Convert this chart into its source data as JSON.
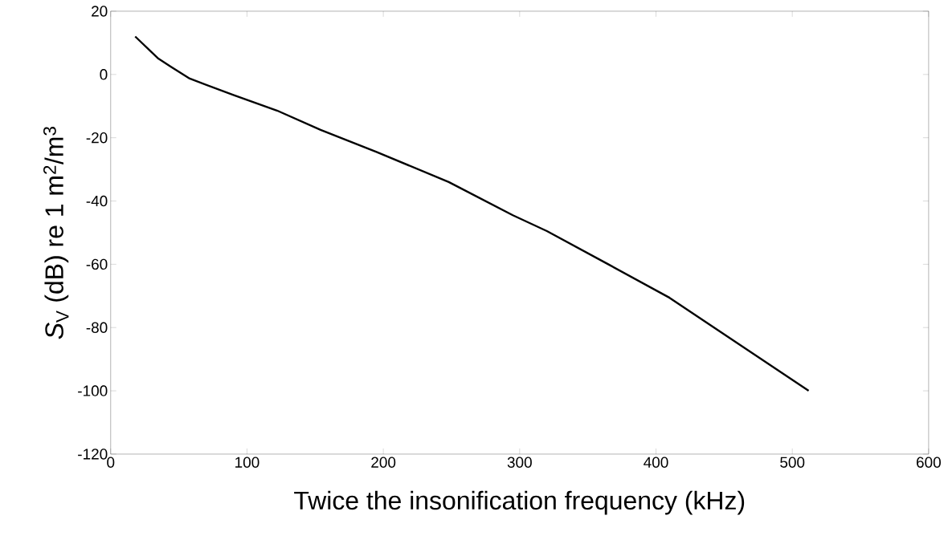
{
  "chart_data": {
    "type": "line",
    "xlabel": "Twice the insonification frequency (kHz)",
    "ylabel": "*S*$_{V}$ (dB)  re  1 m$^{2}$/m$^{3}$",
    "x": [
      18,
      35,
      44,
      58,
      90,
      122,
      154,
      195,
      248,
      295,
      320,
      365,
      410,
      460,
      512
    ],
    "values": [
      12,
      5,
      2.5,
      -1.3,
      -6.5,
      -11.4,
      -17.5,
      -24.5,
      -34,
      -44.5,
      -49.5,
      -60,
      -70.6,
      -85,
      -100
    ],
    "color": "#000000",
    "xlim": [
      0,
      600
    ],
    "ylim": [
      -120,
      20
    ],
    "xticks": [
      0,
      100,
      200,
      300,
      400,
      500,
      600
    ],
    "yticks": [
      -120,
      -100,
      -80,
      -60,
      -40,
      -20,
      0,
      20
    ],
    "grid": false,
    "marker": "none",
    "line_style": "solid"
  }
}
